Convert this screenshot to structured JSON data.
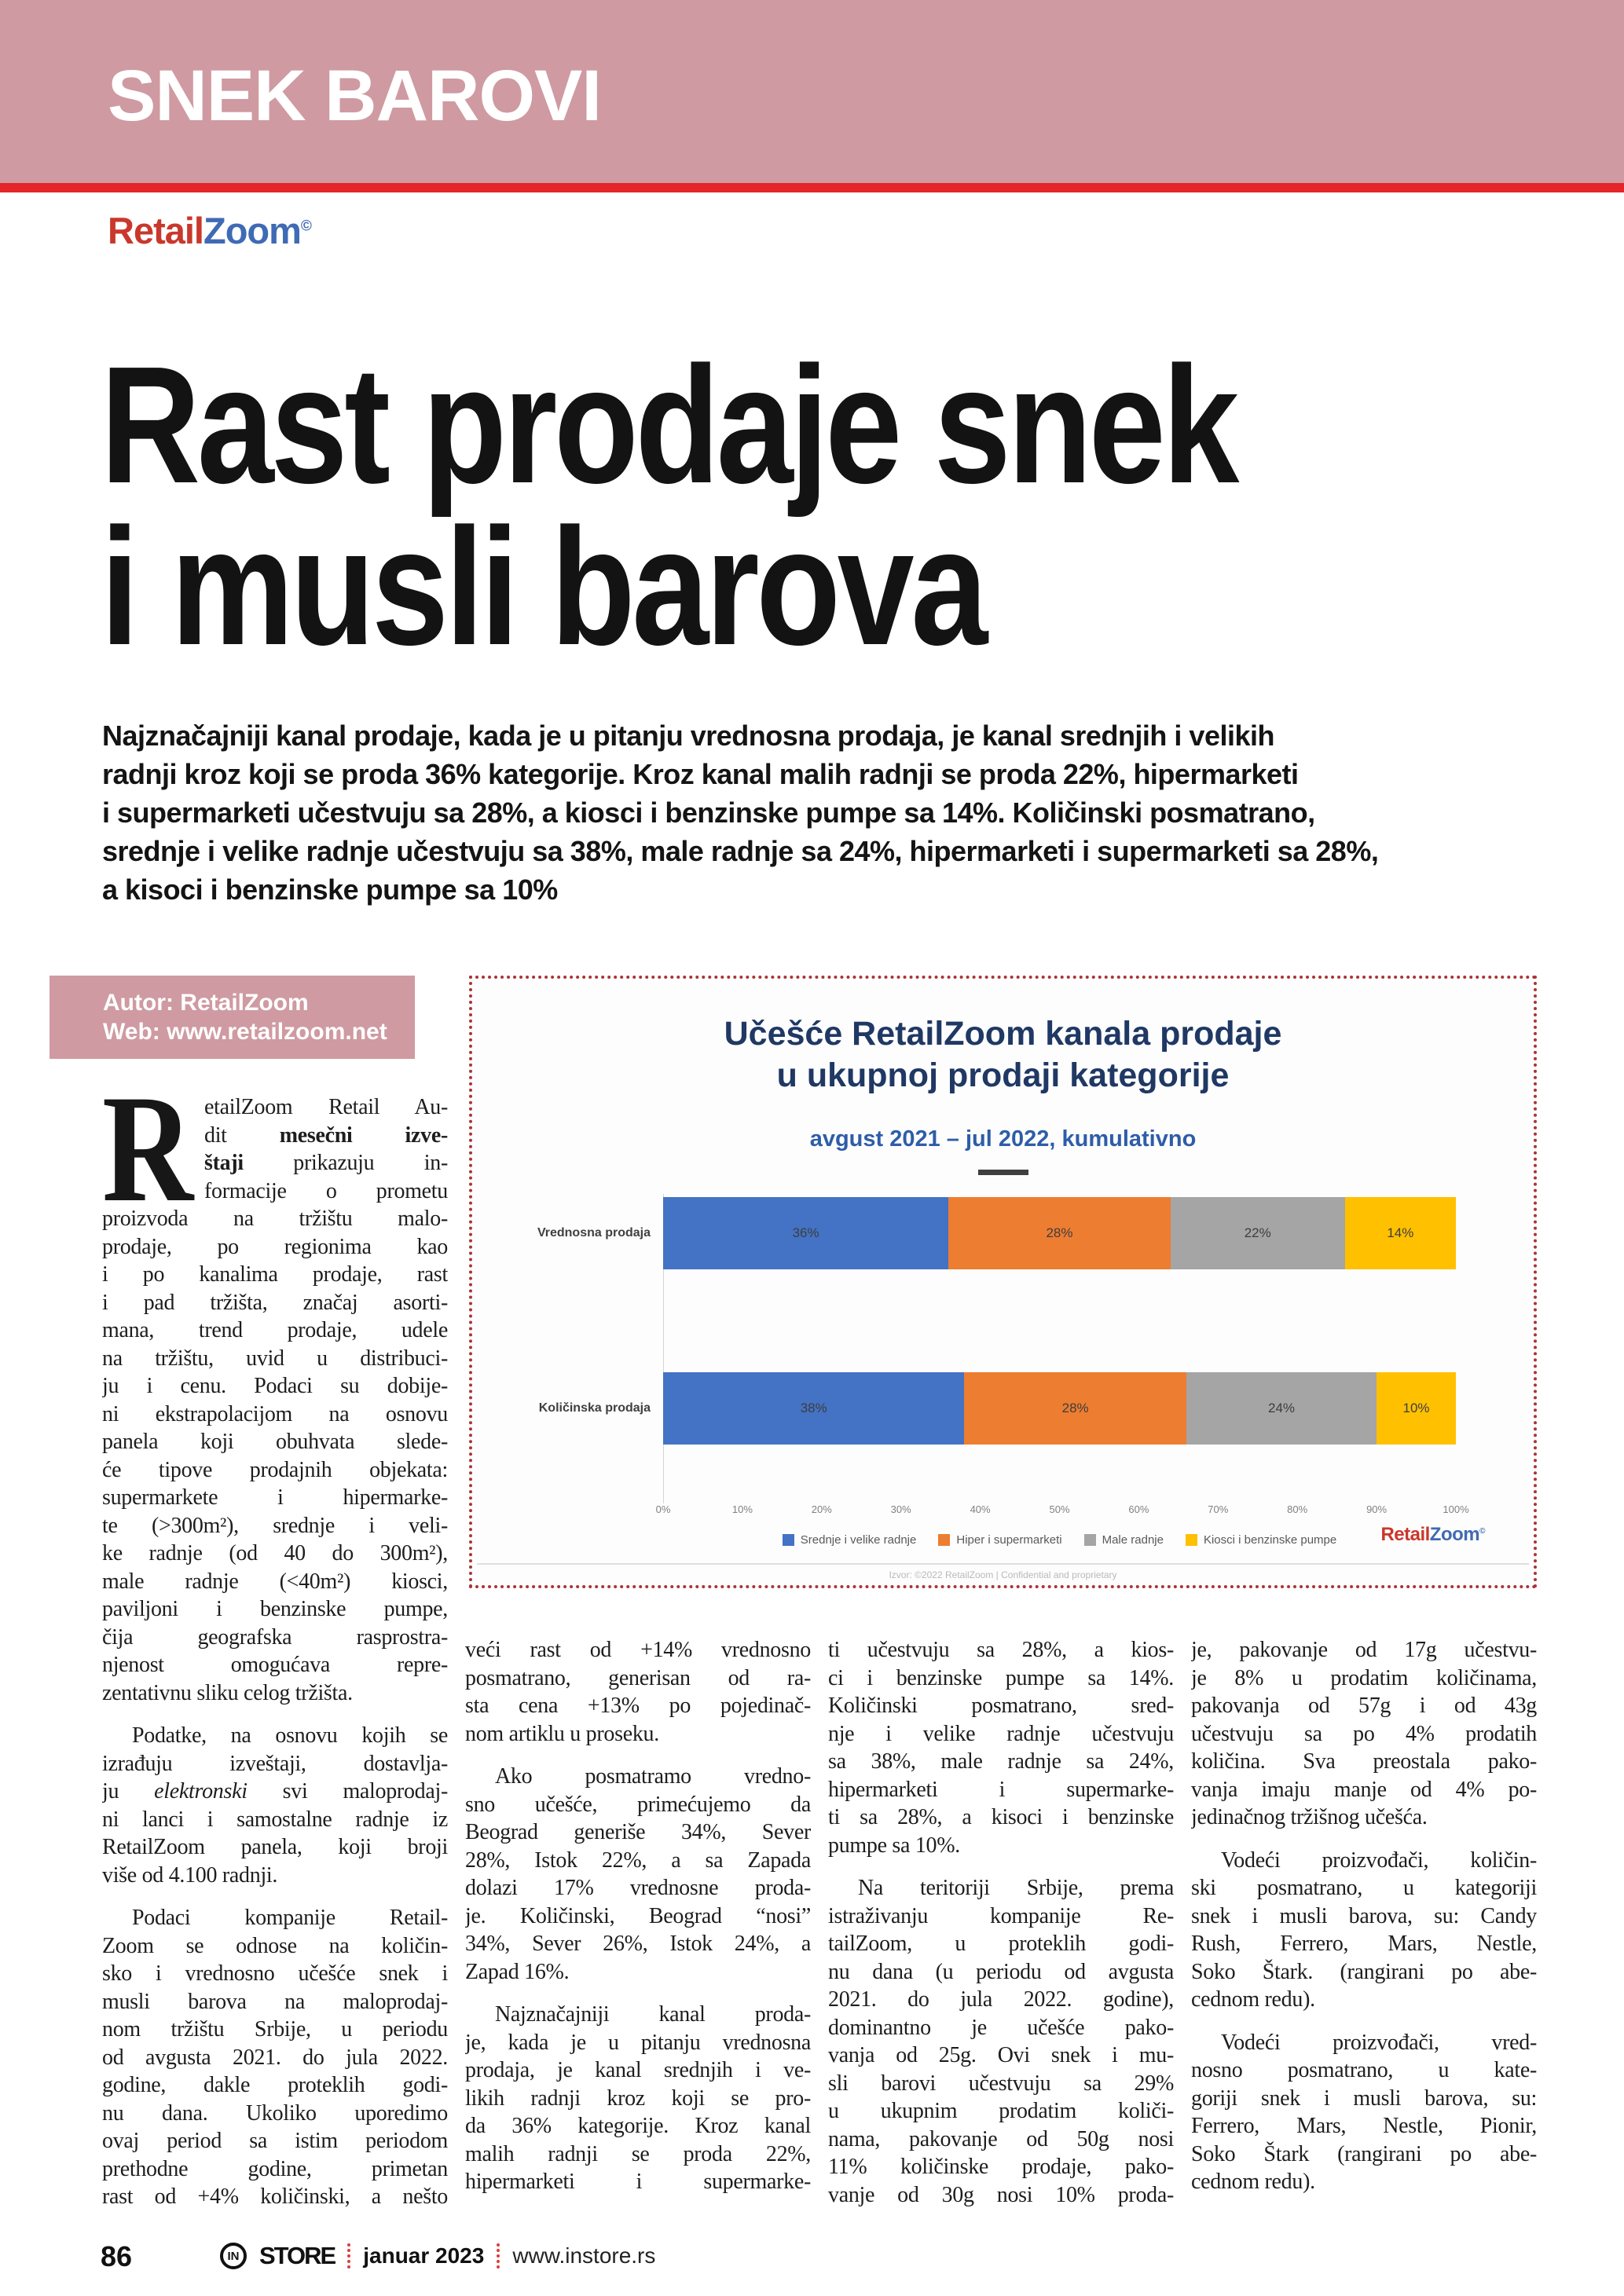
{
  "colors": {
    "band": "#cf9aa1",
    "rule": "#e4252a",
    "dotted": "#a93438",
    "navy": "#1f3864",
    "subblue": "#2e5da8",
    "logo-red": "#c9382c",
    "logo-blue": "#3f6ab4",
    "ink": "#1d1d1d"
  },
  "header": {
    "section_title": "SNEK BAROVI"
  },
  "logo": {
    "retail": "Retail",
    "zoom": "Zoom",
    "mark": "©"
  },
  "headline": {
    "lines": [
      "Rast prodaje snek",
      "i musli barova"
    ]
  },
  "intro": {
    "lines": [
      "Najznačajniji kanal prodaje, kada je u pitanju vrednosna prodaja, je kanal srednjih i velikih",
      "radnji kroz koji se proda 36% kategorije. Kroz kanal malih radnji se proda 22%, hipermarketi",
      "i supermarketi učestvuju sa 28%, a kiosci i benzinske pumpe sa 14%. Količinski posmatrano,",
      "srednje i velike radnje učestvuju sa 38%, male radnje sa 24%, hipermarketi i supermarketi sa 28%,",
      "a kisoci i benzinske pumpe sa 10%"
    ]
  },
  "author_box": {
    "author": "Autor: RetailZoom",
    "web": "Web: www.retailzoom.net"
  },
  "chart_box": {
    "title_line1": "Učešće RetailZoom kanala prodaje",
    "title_line2": "u ukupnoj prodaji kategorije",
    "subtitle": "avgust 2021 – jul 2022, kumulativno",
    "source_note": "Izvor: ©2022 RetailZoom | Confidential and proprietary",
    "brand": {
      "retail": "Retail",
      "zoom": "Zoom",
      "mark": "©"
    }
  },
  "chart_data": {
    "type": "bar",
    "orientation": "horizontal",
    "stacked": true,
    "title": "Učešće RetailZoom kanala prodaje u ukupnoj prodaji kategorije",
    "subtitle": "avgust 2021 – jul 2022, kumulativno",
    "categories": [
      "Vrednosna prodaja",
      "Količinska prodaja"
    ],
    "series": [
      {
        "name": "Srednje i velike radnje",
        "color": "#4472C4",
        "values": [
          36,
          38
        ]
      },
      {
        "name": "Hiper i supermarketi",
        "color": "#ED7D31",
        "values": [
          28,
          28
        ]
      },
      {
        "name": "Male radnje",
        "color": "#A5A5A5",
        "values": [
          22,
          24
        ]
      },
      {
        "name": "Kiosci i benzinske pumpe",
        "color": "#FFC000",
        "values": [
          14,
          10
        ]
      }
    ],
    "x_ticks": [
      "0%",
      "10%",
      "20%",
      "30%",
      "40%",
      "50%",
      "60%",
      "70%",
      "80%",
      "90%",
      "100%"
    ],
    "xlim": [
      0,
      100
    ],
    "value_suffix": "%",
    "legend_position": "bottom",
    "grid": false
  },
  "columns": [
    {
      "paragraphs": [
        {
          "drop_cap": "R",
          "indent": false,
          "lines": [
            "etailZoom Retail Au-",
            "dit **mesečni izve-**",
            "**štaji** prikazuju in-",
            "formacije o prometu",
            "proizvoda na tržištu malo-",
            "prodaje, po regionima kao",
            "i po kanalima prodaje, rast",
            "i pad tržišta, značaj asorti-",
            "mana, trend prodaje, udele",
            "na tržištu, uvid u distribuci-",
            "ju i cenu. Podaci su dobije-",
            "ni ekstrapolacijom na osnovu",
            "panela koji obuhvata slede-",
            "će tipove prodajnih objekata:",
            "supermarkete i hipermarke-",
            "te (>300m²), srednje i veli-",
            "ke radnje (od 40 do 300m²),",
            "male radnje (<40m²) kiosci,",
            "paviljoni i benzinske pumpe,",
            "čija geografska rasprostra-",
            "njenost omogućava repre-",
            "zentativnu sliku celog tržišta."
          ]
        },
        {
          "indent": true,
          "lines": [
            "Podatke, na osnovu kojih se",
            "izrađuju izveštaji, dostavlja-",
            "ju *elektronski* svi maloprodaj-",
            "ni lanci i samostalne radnje iz",
            "RetailZoom panela, koji broji",
            "više od 4.100 radnji."
          ]
        },
        {
          "indent": true,
          "flush_last": true,
          "lines": [
            "Podaci kompanije Retail-",
            "Zoom se odnose na količin-",
            "sko i vrednosno učešće snek i",
            "musli barova na maloprodaj-",
            "nom tržištu Srbije, u periodu",
            "od avgusta 2021. do jula 2022.",
            "godine, dakle proteklih godi-",
            "nu dana. Ukoliko uporedimo",
            "ovaj period sa istim periodom",
            "prethodne godine, primetan",
            "rast od +4% količinski, a nešto"
          ]
        }
      ]
    },
    {
      "paragraphs": [
        {
          "indent": false,
          "lines": [
            "veći rast od +14% vrednosno",
            "posmatrano, generisan od ra-",
            "sta cena +13% po pojedinač-",
            "nom artiklu u proseku."
          ]
        },
        {
          "indent": true,
          "lines": [
            "Ako posmatramo vredno-",
            "sno učešće, primećujemo da",
            "Beograd generiše 34%, Sever",
            "28%, Istok 22%, a sa Zapada",
            "dolazi 17% vrednosne proda-",
            "je. Količinski, Beograd “nosi”",
            "34%, Sever 26%, Istok 24%, a",
            "Zapad 16%."
          ]
        },
        {
          "indent": true,
          "flush_last": true,
          "lines": [
            "Najznačajniji kanal proda-",
            "je, kada je u pitanju vrednosna",
            "prodaja, je kanal srednjih i ve-",
            "likih radnji kroz koji se pro-",
            "da 36% kategorije. Kroz kanal",
            "malih radnji se proda 22%,",
            "hipermarketi i supermarke-"
          ]
        }
      ]
    },
    {
      "paragraphs": [
        {
          "indent": false,
          "lines": [
            "ti učestvuju sa 28%, a kios-",
            "ci i benzinske pumpe sa 14%.",
            "Količinski posmatrano, sred-",
            "nje i velike radnje učestvuju",
            "sa 38%, male radnje sa 24%,",
            "hipermarketi i supermarke-",
            "ti sa 28%, a kisoci i benzinske",
            "pumpe sa 10%."
          ]
        },
        {
          "indent": true,
          "flush_last": true,
          "lines": [
            "Na teritoriji Srbije, prema",
            "istraživanju kompanije Re-",
            "tailZoom, u proteklih godi-",
            "nu dana (u periodu od avgusta",
            "2021. do jula 2022. godine),",
            "dominantno je učešće pako-",
            "vanja od 25g. Ovi snek i mu-",
            "sli barovi učestvuju sa 29%",
            "u ukupnim prodatim količi-",
            "nama, pakovanje od 50g nosi",
            "11% količinske prodaje, pako-",
            "vanje od 30g nosi 10% proda-"
          ]
        }
      ]
    },
    {
      "paragraphs": [
        {
          "indent": false,
          "lines": [
            "je, pakovanje od 17g učestvu-",
            "je 8% u prodatim količinama,",
            "pakovanja od 57g i od 43g",
            "učestvuju sa po 4% prodatih",
            "količina. Sva preostala pako-",
            "vanja imaju manje od 4% po-",
            "jedinačnog tržišnog učešća."
          ]
        },
        {
          "indent": true,
          "lines": [
            "Vodeći proizvođači, količin-",
            "ski posmatrano, u kategoriji",
            "snek i musli barova, su: Candy",
            "Rush, Ferrero, Mars, Nestle,",
            "Soko Štark. (rangirani po abe-",
            "cednom redu)."
          ]
        },
        {
          "indent": true,
          "lines": [
            "Vodeći proizvođači, vred-",
            "nosno posmatrano, u kate-",
            "goriji snek i musli barova, su:",
            "Ferrero, Mars, Nestle, Pionir,",
            "Soko Štark (rangirani po abe-",
            "cednom redu)."
          ]
        }
      ]
    }
  ],
  "footer": {
    "page_number": "86",
    "brand_in": "IN",
    "brand_store": "STORE",
    "issue": "januar 2023",
    "site": "www.instore.rs"
  }
}
